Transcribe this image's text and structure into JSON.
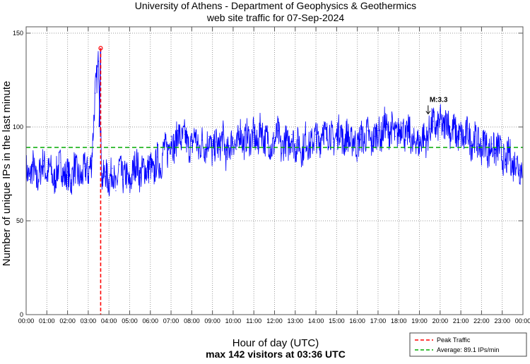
{
  "chart_data": {
    "type": "line",
    "title": "University of Athens - Department of Geophysics & Geothermics",
    "subtitle": "web site traffic for 07-Sep-2024",
    "xlabel": "Hour of day (UTC)",
    "xlabel2": "max 142 visitors at 03:36 UTC",
    "ylabel": "Number of unique IPs in the last minute",
    "xlim": [
      0,
      24
    ],
    "ylim": [
      0,
      150
    ],
    "yticks": [
      0,
      50,
      100,
      150
    ],
    "xticks": [
      "00:00",
      "01:00",
      "02:00",
      "03:00",
      "04:00",
      "05:00",
      "06:00",
      "07:00",
      "08:00",
      "09:00",
      "10:00",
      "11:00",
      "12:00",
      "13:00",
      "14:00",
      "15:00",
      "16:00",
      "17:00",
      "18:00",
      "19:00",
      "20:00",
      "21:00",
      "22:00",
      "23:00",
      "00:00"
    ],
    "grid": true,
    "sample_interval_minutes": 10,
    "series": [
      {
        "name": "Unique IPs",
        "color": "#0000ff",
        "values": [
          78,
          72,
          80,
          70,
          76,
          82,
          74,
          79,
          70,
          77,
          81,
          73,
          76,
          70,
          80,
          74,
          72,
          79,
          75,
          82,
          118,
          135,
          72,
          76,
          70,
          78,
          66,
          80,
          72,
          75,
          68,
          77,
          82,
          73,
          79,
          76,
          80,
          74,
          84,
          78,
          90,
          86,
          95,
          88,
          98,
          92,
          96,
          89,
          90,
          97,
          86,
          93,
          88,
          95,
          85,
          92,
          88,
          96,
          84,
          90,
          94,
          88,
          99,
          90,
          96,
          92,
          97,
          89,
          101,
          92,
          95,
          88,
          92,
          98,
          86,
          94,
          90,
          96,
          88,
          93,
          86,
          95,
          89,
          92,
          96,
          90,
          101,
          94,
          98,
          92,
          95,
          100,
          90,
          97,
          91,
          94,
          89,
          96,
          92,
          98,
          90,
          95,
          98,
          94,
          103,
          96,
          100,
          95,
          97,
          102,
          93,
          99,
          89,
          94,
          90,
          96,
          92,
          99,
          103,
          98,
          104,
          98,
          106,
          96,
          100,
          94,
          96,
          92,
          99,
          90,
          95,
          91,
          88,
          94,
          85,
          91,
          86,
          90,
          84,
          80,
          88,
          78,
          83,
          77,
          80
        ]
      }
    ],
    "peak": {
      "hour": 3.6,
      "value": 142,
      "color": "#ff0000"
    },
    "average": {
      "value": 89.1,
      "color": "#00aa00"
    },
    "annotation": {
      "text": "M:3.3",
      "hour": 19.42,
      "value": 107
    },
    "legend": {
      "placement": "bottom-right",
      "entries": [
        {
          "label": "Peak Traffic",
          "color": "#ff0000"
        },
        {
          "label": "Average: 89.1 IPs/min",
          "color": "#00aa00"
        }
      ]
    }
  }
}
